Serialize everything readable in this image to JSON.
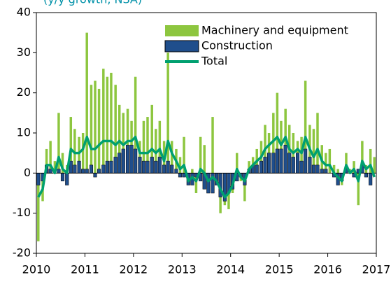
{
  "chart_data": {
    "type": "bar",
    "subtitle": "(y/y growth, NSA)",
    "xlim": [
      2010,
      2017
    ],
    "xticks": [
      2010,
      2011,
      2012,
      2013,
      2014,
      2015,
      2016,
      2017
    ],
    "ylim": [
      -20,
      40
    ],
    "yticks": [
      -20,
      -10,
      0,
      10,
      20,
      30,
      40
    ],
    "x": [
      2010.04,
      2010.13,
      2010.21,
      2010.29,
      2010.38,
      2010.46,
      2010.54,
      2010.63,
      2010.71,
      2010.79,
      2010.88,
      2010.96,
      2011.04,
      2011.13,
      2011.21,
      2011.29,
      2011.38,
      2011.46,
      2011.54,
      2011.63,
      2011.71,
      2011.79,
      2011.88,
      2011.96,
      2012.04,
      2012.13,
      2012.21,
      2012.29,
      2012.38,
      2012.46,
      2012.54,
      2012.63,
      2012.71,
      2012.79,
      2012.88,
      2012.96,
      2013.04,
      2013.13,
      2013.21,
      2013.29,
      2013.38,
      2013.46,
      2013.54,
      2013.63,
      2013.71,
      2013.79,
      2013.88,
      2013.96,
      2014.04,
      2014.13,
      2014.21,
      2014.29,
      2014.38,
      2014.46,
      2014.54,
      2014.63,
      2014.71,
      2014.79,
      2014.88,
      2014.96,
      2015.04,
      2015.13,
      2015.21,
      2015.29,
      2015.38,
      2015.46,
      2015.54,
      2015.63,
      2015.71,
      2015.79,
      2015.88,
      2015.96,
      2016.04,
      2016.13,
      2016.21,
      2016.29,
      2016.38,
      2016.46,
      2016.54,
      2016.63,
      2016.71,
      2016.79,
      2016.88,
      2016.96
    ],
    "series": [
      {
        "name": "Machinery and equipment",
        "color": "#8dc63f",
        "values": [
          -17,
          -7,
          6,
          8,
          3,
          15,
          5,
          2,
          14,
          11,
          9,
          10,
          35,
          22,
          23,
          21,
          26,
          24,
          25,
          22,
          17,
          15,
          16,
          13,
          24,
          8,
          13,
          14,
          17,
          11,
          13,
          8,
          30,
          8,
          6,
          4,
          9,
          -3,
          1,
          -5,
          9,
          7,
          -1,
          14,
          -3,
          -10,
          -8,
          -9,
          -5,
          5,
          -2,
          -7,
          3,
          4,
          6,
          8,
          12,
          10,
          15,
          20,
          13,
          16,
          12,
          10,
          8,
          9,
          23,
          12,
          11,
          15,
          7,
          5,
          6,
          2,
          1,
          -3,
          5,
          1,
          3,
          -8,
          8,
          2,
          6,
          4
        ]
      },
      {
        "name": "Construction",
        "color": "#1f4e8c",
        "values": [
          -3,
          -2,
          2,
          1,
          0,
          1,
          -2,
          -3,
          3,
          2,
          3,
          1,
          1,
          2,
          -1,
          1,
          2,
          3,
          3,
          4,
          5,
          6,
          7,
          7,
          6,
          4,
          3,
          3,
          4,
          3,
          4,
          2,
          3,
          2,
          1,
          -1,
          -1,
          -3,
          -3,
          -1,
          -2,
          -4,
          -5,
          -5,
          -3,
          -6,
          -7,
          -5,
          -4,
          -2,
          -1,
          -3,
          1,
          2,
          2,
          3,
          4,
          5,
          5,
          6,
          6,
          7,
          5,
          4,
          5,
          3,
          6,
          4,
          2,
          2,
          1,
          1,
          0,
          -1,
          -3,
          -2,
          1,
          0,
          -1,
          1,
          2,
          -1,
          -3,
          0
        ]
      },
      {
        "name": "Total",
        "color": "#00a070",
        "values": [
          -6,
          -4,
          2,
          2,
          0,
          4,
          1,
          0,
          6,
          5,
          5,
          6,
          9,
          6,
          6,
          7,
          8,
          8,
          8,
          7,
          8,
          7,
          8,
          8,
          9,
          5,
          5,
          5,
          6,
          5,
          6,
          3,
          8,
          5,
          3,
          1,
          2,
          -2,
          -1,
          -2,
          1,
          0,
          -2,
          -1,
          -2,
          -4,
          -6,
          -5,
          -3,
          1,
          -1,
          -2,
          1,
          2,
          3,
          4,
          6,
          7,
          8,
          9,
          7,
          9,
          6,
          5,
          6,
          5,
          9,
          6,
          4,
          6,
          3,
          2,
          2,
          0,
          -1,
          -2,
          2,
          0,
          1,
          -2,
          3,
          1,
          2,
          -1
        ]
      }
    ]
  }
}
